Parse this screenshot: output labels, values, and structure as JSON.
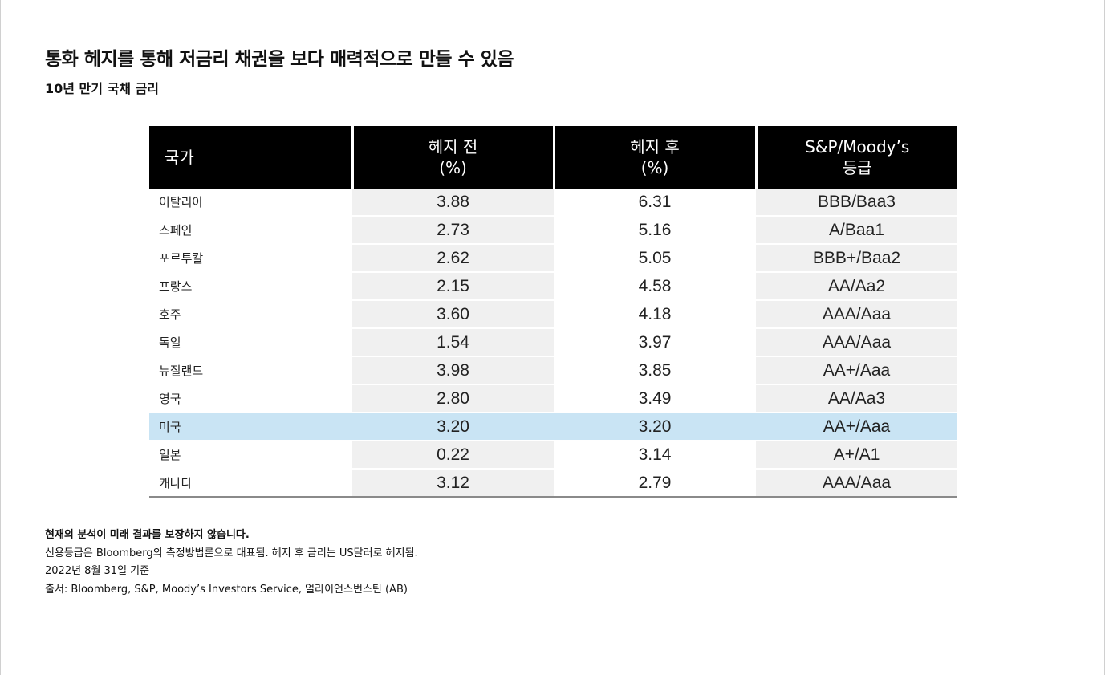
{
  "title": "통화 헤지를 통해 저금리 채권을 보다 매력적으로 만들 수 있음",
  "subtitle": "10년 만기 국채 금리",
  "table": {
    "headers": {
      "country": "국가",
      "pre_line1": "헤지 전",
      "pre_line2": "(%)",
      "post_line1": "헤지 후",
      "post_line2": "(%)",
      "rating_line1": "S&P/Moody’s",
      "rating_line2": "등급"
    },
    "rows": [
      {
        "country": "이탈리아",
        "pre": "3.88",
        "post": "6.31",
        "rating": "BBB/Baa3"
      },
      {
        "country": "스페인",
        "pre": "2.73",
        "post": "5.16",
        "rating": "A/Baa1"
      },
      {
        "country": "포르투칼",
        "pre": "2.62",
        "post": "5.05",
        "rating": "BBB+/Baa2"
      },
      {
        "country": "프랑스",
        "pre": "2.15",
        "post": "4.58",
        "rating": "AA/Aa2"
      },
      {
        "country": "호주",
        "pre": "3.60",
        "post": "4.18",
        "rating": "AAA/Aaa"
      },
      {
        "country": "독일",
        "pre": "1.54",
        "post": "3.97",
        "rating": "AAA/Aaa"
      },
      {
        "country": "뉴질랜드",
        "pre": "3.98",
        "post": "3.85",
        "rating": "AA+/Aaa"
      },
      {
        "country": "영국",
        "pre": "2.80",
        "post": "3.49",
        "rating": "AA/Aa3"
      },
      {
        "country": "미국",
        "pre": "3.20",
        "post": "3.20",
        "rating": "AA+/Aaa"
      },
      {
        "country": "일본",
        "pre": "0.22",
        "post": "3.14",
        "rating": "A+/A1"
      },
      {
        "country": "캐나다",
        "pre": "3.12",
        "post": "2.79",
        "rating": "AAA/Aaa"
      }
    ],
    "highlight_row_color": "#c9e4f4",
    "header_background": "#000000"
  },
  "notes": {
    "disclaimer": "현재의 분석이 미래 결과를 보장하지 않습니다.",
    "methodology": "신용등급은 Bloomberg의 측정방법론으로 대표됨. 헤지 후 금리는 US달러로 헤지됨.",
    "date": "2022년 8월 31일 기준",
    "source": "출서: Bloomberg, S&P, Moody’s Investors Service, 얼라이언스번스틴 (AB)"
  }
}
